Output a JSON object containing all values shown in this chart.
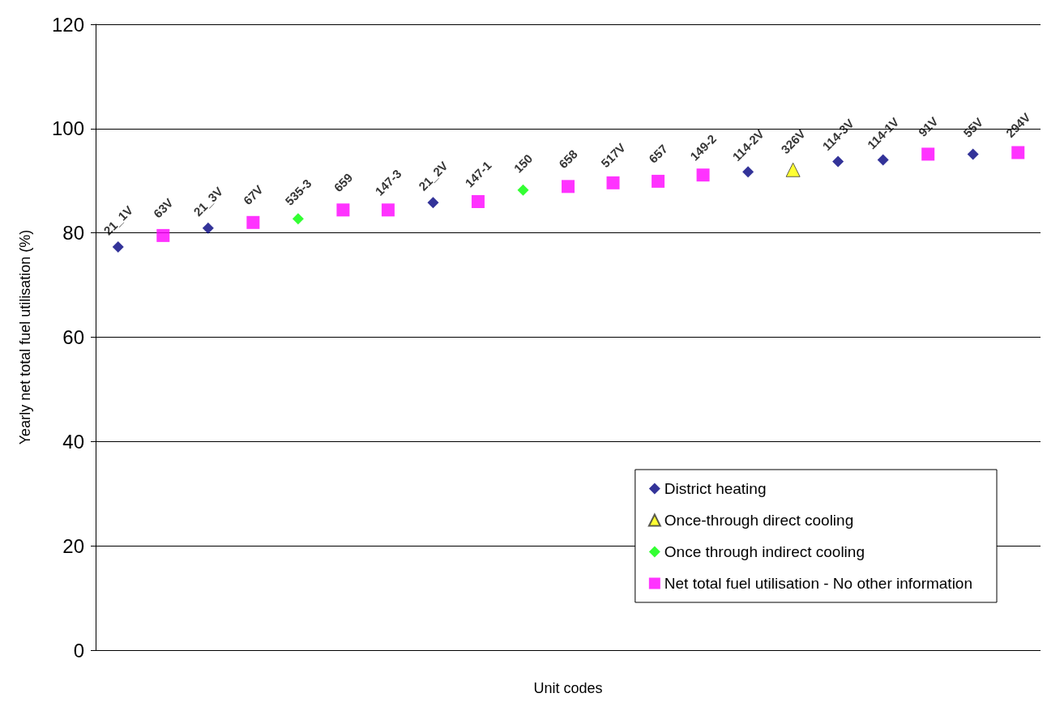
{
  "chart_data": {
    "type": "scatter",
    "xlabel": "Unit codes",
    "ylabel": "Yearly net total fuel utilisation (%)",
    "categories": [
      "21_1V",
      "63V",
      "21_3V",
      "67V",
      "535-3",
      "659",
      "147-3",
      "21_2V",
      "147-1",
      "150",
      "658",
      "517V",
      "657",
      "149-2",
      "114-2V",
      "326V",
      "114-3V",
      "114-1V",
      "91V",
      "55V",
      "294V"
    ],
    "series": [
      {
        "name": "District heating",
        "color": "#000080",
        "marker": "diamond",
        "values": [
          77.3,
          null,
          80.9,
          null,
          null,
          null,
          null,
          85.8,
          null,
          null,
          null,
          null,
          null,
          null,
          91.7,
          null,
          93.7,
          94.0,
          null,
          95.1,
          null
        ]
      },
      {
        "name": "Once-through direct cooling",
        "color": "#ffff00",
        "marker": "triangle",
        "values": [
          null,
          null,
          null,
          null,
          null,
          null,
          null,
          null,
          null,
          null,
          null,
          null,
          null,
          null,
          null,
          92.1,
          null,
          null,
          null,
          null,
          null
        ]
      },
      {
        "name": "Once through indirect cooling",
        "color": "#00ff00",
        "marker": "diamond",
        "values": [
          null,
          null,
          null,
          null,
          82.7,
          null,
          null,
          null,
          null,
          88.2,
          null,
          null,
          null,
          null,
          null,
          null,
          null,
          null,
          null,
          null,
          null
        ]
      },
      {
        "name": "Net total fuel utilisation - No other information",
        "color": "#ff00ff",
        "marker": "square",
        "values": [
          null,
          79.5,
          null,
          82.0,
          null,
          84.4,
          84.4,
          null,
          86.0,
          null,
          88.9,
          89.6,
          89.9,
          91.1,
          null,
          null,
          null,
          null,
          95.1,
          null,
          95.4
        ]
      }
    ],
    "ylim": [
      0,
      120
    ],
    "yticks": [
      0,
      20,
      40,
      60,
      80,
      100,
      120
    ],
    "grid": "y",
    "legend": "bottom right",
    "tick_labels": "y"
  }
}
